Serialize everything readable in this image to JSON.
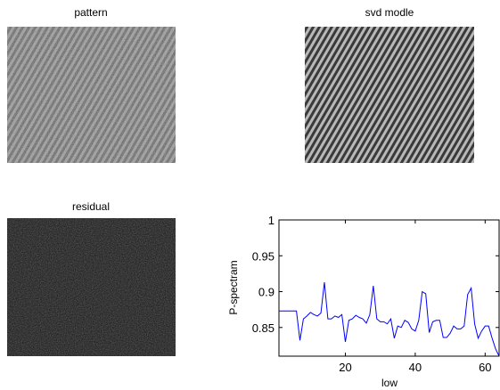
{
  "images": [
    {
      "title": "pattern"
    },
    {
      "title": "svd modle"
    },
    {
      "title": "residual"
    }
  ],
  "chart_data": {
    "type": "line",
    "xlabel": "low",
    "ylabel": "P-spectram",
    "color": "#0000ff",
    "x": [
      1,
      2,
      3,
      4,
      5,
      6,
      7,
      8,
      9,
      10,
      11,
      12,
      13,
      14,
      15,
      16,
      17,
      18,
      19,
      20,
      21,
      22,
      23,
      24,
      25,
      26,
      27,
      28,
      29,
      30,
      31,
      32,
      33,
      34,
      35,
      36,
      37,
      38,
      39,
      40,
      41,
      42,
      43,
      44,
      45,
      46,
      47,
      48,
      49,
      50,
      51,
      52,
      53,
      54,
      55,
      56,
      57,
      58,
      59,
      60,
      61,
      62,
      63,
      64
    ],
    "values": [
      0.873,
      0.873,
      0.873,
      0.873,
      0.873,
      0.873,
      0.832,
      0.862,
      0.866,
      0.871,
      0.868,
      0.866,
      0.87,
      0.913,
      0.862,
      0.862,
      0.866,
      0.864,
      0.868,
      0.83,
      0.86,
      0.862,
      0.867,
      0.864,
      0.862,
      0.856,
      0.868,
      0.908,
      0.862,
      0.858,
      0.858,
      0.855,
      0.862,
      0.835,
      0.852,
      0.85,
      0.86,
      0.857,
      0.848,
      0.845,
      0.86,
      0.9,
      0.897,
      0.843,
      0.858,
      0.86,
      0.86,
      0.836,
      0.836,
      0.842,
      0.852,
      0.848,
      0.848,
      0.852,
      0.896,
      0.905,
      0.855,
      0.835,
      0.845,
      0.852,
      0.852,
      0.835,
      0.82,
      0.81
    ],
    "xlim": [
      1,
      64
    ],
    "xticks": [
      20,
      40,
      60
    ],
    "ylim": [
      0.81,
      1
    ],
    "yticks": [
      0.85,
      0.9,
      0.95,
      1
    ]
  }
}
